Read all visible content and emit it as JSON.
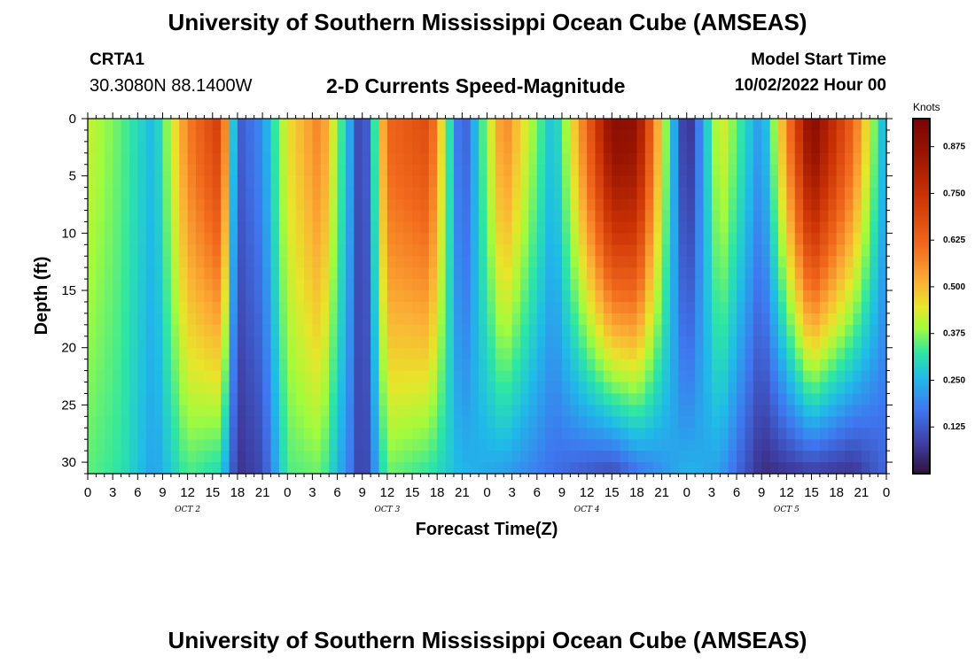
{
  "header": {
    "title": "University of Southern Mississippi Ocean Cube (AMSEAS)",
    "station_name": "CRTA1",
    "station_coords": "30.3080N  88.1400W",
    "subtitle": "2-D Currents Speed-Magnitude",
    "model_start_label": "Model Start Time",
    "model_start_value": "10/02/2022 Hour 00"
  },
  "footer": {
    "title": "University of Southern Mississippi Ocean Cube (AMSEAS)"
  },
  "chart_data": {
    "type": "heatmap",
    "title": "2-D Currents Speed-Magnitude",
    "xlabel": "Forecast Time(Z)",
    "ylabel": "Depth (ft)",
    "x_unit": "hours since model start",
    "xlim": [
      0,
      96
    ],
    "ylim": [
      0,
      31
    ],
    "y_inverted": true,
    "x_tick_hours": [
      0,
      3,
      6,
      9,
      12,
      15,
      18,
      21,
      24,
      27,
      30,
      33,
      36,
      39,
      42,
      45,
      48,
      51,
      54,
      57,
      60,
      63,
      66,
      69,
      72,
      75,
      78,
      81,
      84,
      87,
      90,
      93,
      96
    ],
    "x_tick_labels": [
      "0",
      "3",
      "6",
      "9",
      "12",
      "15",
      "18",
      "21",
      "0",
      "3",
      "6",
      "9",
      "12",
      "15",
      "18",
      "21",
      "0",
      "3",
      "6",
      "9",
      "12",
      "15",
      "18",
      "21",
      "0",
      "3",
      "6",
      "9",
      "12",
      "15",
      "18",
      "21",
      "0"
    ],
    "day_labels": [
      {
        "hour": 12,
        "label": "OCT 2"
      },
      {
        "hour": 36,
        "label": "OCT 3"
      },
      {
        "hour": 60,
        "label": "OCT 4"
      },
      {
        "hour": 84,
        "label": "OCT 5"
      }
    ],
    "y_ticks": [
      0,
      5,
      10,
      15,
      20,
      25,
      30
    ],
    "y_tick_labels": [
      "0",
      "5",
      "10",
      "15",
      "20",
      "25",
      "30"
    ],
    "colorbar": {
      "unit_label": "Knots",
      "min": 0,
      "max": 0.95,
      "ticks": [
        0.125,
        0.25,
        0.375,
        0.5,
        0.625,
        0.75,
        0.875
      ],
      "tick_labels": [
        "0.125",
        "0.250",
        "0.375",
        "0.500",
        "0.625",
        "0.750",
        "0.875"
      ],
      "colormap": "jet-like (dark blue → blue → cyan → green → yellow → orange → red → dark red)"
    },
    "speed_field_estimate": [
      {
        "hour": 0,
        "surface": 0.42,
        "bottom": 0.35
      },
      {
        "hour": 4,
        "surface": 0.35,
        "bottom": 0.32
      },
      {
        "hour": 8,
        "surface": 0.25,
        "bottom": 0.22
      },
      {
        "hour": 12,
        "surface": 0.58,
        "bottom": 0.34
      },
      {
        "hour": 16,
        "surface": 0.72,
        "bottom": 0.3
      },
      {
        "hour": 18,
        "surface": 0.12,
        "bottom": 0.06
      },
      {
        "hour": 21,
        "surface": 0.2,
        "bottom": 0.1
      },
      {
        "hour": 24,
        "surface": 0.45,
        "bottom": 0.34
      },
      {
        "hour": 28,
        "surface": 0.58,
        "bottom": 0.36
      },
      {
        "hour": 32,
        "surface": 0.18,
        "bottom": 0.15
      },
      {
        "hour": 33,
        "surface": 0.03,
        "bottom": 0.05
      },
      {
        "hour": 36,
        "surface": 0.62,
        "bottom": 0.36
      },
      {
        "hour": 41,
        "surface": 0.68,
        "bottom": 0.32
      },
      {
        "hour": 45,
        "surface": 0.1,
        "bottom": 0.25
      },
      {
        "hour": 50,
        "surface": 0.58,
        "bottom": 0.22
      },
      {
        "hour": 56,
        "surface": 0.25,
        "bottom": 0.16
      },
      {
        "hour": 63,
        "surface": 0.9,
        "bottom": 0.1
      },
      {
        "hour": 66,
        "surface": 0.88,
        "bottom": 0.16
      },
      {
        "hour": 72,
        "surface": 0.02,
        "bottom": 0.25
      },
      {
        "hour": 76,
        "surface": 0.45,
        "bottom": 0.22
      },
      {
        "hour": 81,
        "surface": 0.2,
        "bottom": 0.05
      },
      {
        "hour": 87,
        "surface": 0.92,
        "bottom": 0.08
      },
      {
        "hour": 92,
        "surface": 0.62,
        "bottom": 0.06
      },
      {
        "hour": 96,
        "surface": 0.22,
        "bottom": 0.15
      }
    ]
  }
}
